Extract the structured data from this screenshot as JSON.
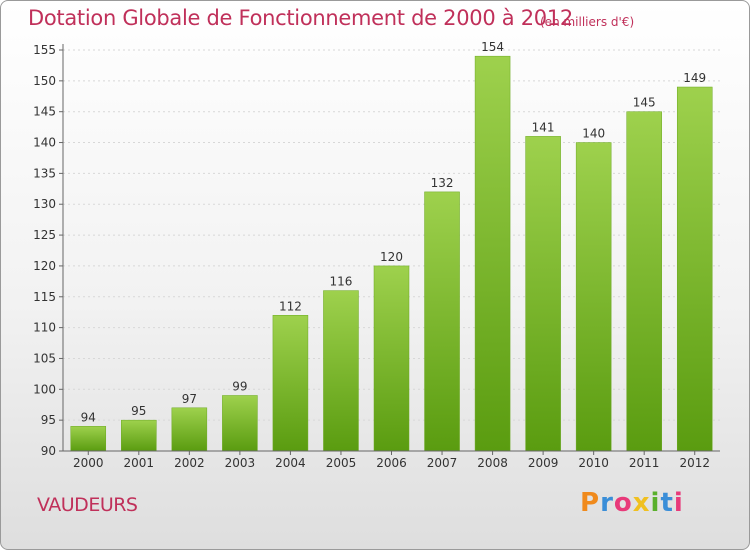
{
  "header": {
    "title": "Dotation Globale de Fonctionnement de 2000 à 2012",
    "unit": "(en milliers d'€)"
  },
  "footer": {
    "commune": "VAUDEURS",
    "logo": "Proxiti"
  },
  "colors": {
    "title": "#c0305a",
    "bar_top": "#9ed14d",
    "bar_bottom": "#5a9c10",
    "logo": [
      "#f08a1c",
      "#3a8ed8",
      "#e83a7a",
      "#f0c020",
      "#5ab02c",
      "#3a8ed8",
      "#e83a7a"
    ]
  },
  "chart_data": {
    "type": "bar",
    "categories": [
      "2000",
      "2001",
      "2002",
      "2003",
      "2004",
      "2005",
      "2006",
      "2007",
      "2008",
      "2009",
      "2010",
      "2011",
      "2012"
    ],
    "values": [
      94,
      95,
      97,
      99,
      112,
      116,
      120,
      132,
      154,
      141,
      140,
      145,
      149
    ],
    "ylim": [
      90,
      155
    ],
    "yticks": [
      90,
      95,
      100,
      105,
      110,
      115,
      120,
      125,
      130,
      135,
      140,
      145,
      150,
      155
    ],
    "grid": true,
    "legend": "none"
  }
}
